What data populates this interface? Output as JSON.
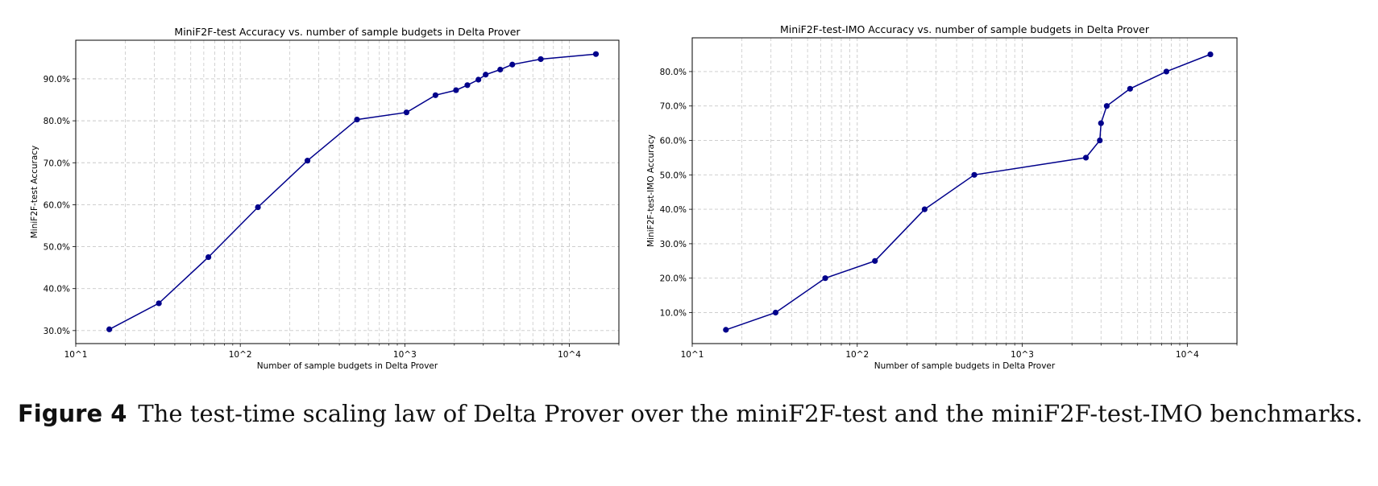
{
  "chart_data": [
    {
      "type": "line",
      "title": "MiniF2F-test Accuracy vs. number of sample budgets in Delta Prover",
      "xlabel": "Number of sample budgets in Delta Prover",
      "ylabel": "MiniF2F-test Accuracy",
      "xscale": "log",
      "xlim": [
        10,
        20000
      ],
      "ylim": [
        26.9,
        99.2
      ],
      "xticks": [
        10,
        100,
        1000,
        10000
      ],
      "xtick_labels": [
        "10^1",
        "10^2",
        "10^3",
        "10^4"
      ],
      "yticks": [
        30,
        40,
        50,
        60,
        70,
        80,
        90
      ],
      "ytick_labels": [
        "30.0%",
        "40.0%",
        "50.0%",
        "60.0%",
        "70.0%",
        "80.0%",
        "90.0%"
      ],
      "grid": true,
      "color": "#00008b",
      "x": [
        16,
        32,
        64,
        128,
        256,
        512,
        1024,
        1536,
        2048,
        2400,
        2800,
        3100,
        3800,
        4500,
        6700,
        14500
      ],
      "y": [
        30.3,
        36.5,
        47.5,
        59.4,
        70.5,
        80.3,
        82.0,
        86.1,
        87.3,
        88.5,
        89.8,
        91.0,
        92.2,
        93.4,
        94.7,
        95.9
      ]
    },
    {
      "type": "line",
      "title": "MiniF2F-test-IMO Accuracy vs. number of sample budgets in Delta Prover",
      "xlabel": "Number of sample budgets in Delta Prover",
      "ylabel": "MiniF2F-test-IMO Accuracy",
      "xscale": "log",
      "xlim": [
        10,
        20000
      ],
      "ylim": [
        1.0,
        89.8
      ],
      "xticks": [
        10,
        100,
        1000,
        10000
      ],
      "xtick_labels": [
        "10^1",
        "10^2",
        "10^3",
        "10^4"
      ],
      "yticks": [
        10,
        20,
        30,
        40,
        50,
        60,
        70,
        80
      ],
      "ytick_labels": [
        "10.0%",
        "20.0%",
        "30.0%",
        "40.0%",
        "50.0%",
        "60.0%",
        "70.0%",
        "80.0%"
      ],
      "grid": true,
      "color": "#00008b",
      "x": [
        16,
        32,
        64,
        128,
        256,
        512,
        2430,
        2950,
        3000,
        3250,
        4500,
        7470,
        13800
      ],
      "y": [
        5,
        10,
        20,
        25,
        40,
        50,
        55,
        60,
        65,
        70,
        75,
        80,
        85
      ]
    }
  ],
  "caption": {
    "label": "Figure 4",
    "text": "The test-time scaling law of Delta Prover over the miniF2F-test and the miniF2F-test-IMO benchmarks."
  }
}
